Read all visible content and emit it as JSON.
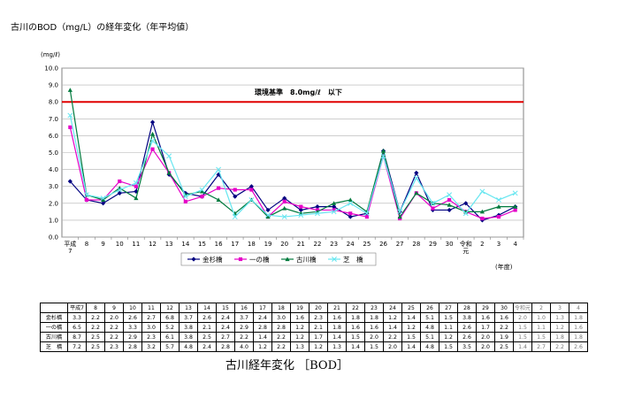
{
  "page": {
    "title": "古川のBOD（mg/L）の経年変化（年平均値）",
    "caption": "古川経年変化 ［BOD］"
  },
  "chart_data": {
    "type": "line",
    "ylabel": "(mg/ℓ)",
    "xlabel": "(年度)",
    "ylim": [
      0,
      10
    ],
    "yticks": [
      "0.0",
      "1.0",
      "2.0",
      "3.0",
      "4.0",
      "5.0",
      "6.0",
      "7.0",
      "8.0",
      "9.0",
      "10.0"
    ],
    "categories": [
      "平成7",
      "8",
      "9",
      "10",
      "11",
      "12",
      "13",
      "14",
      "15",
      "16",
      "17",
      "18",
      "19",
      "20",
      "21",
      "22",
      "23",
      "24",
      "25",
      "26",
      "27",
      "28",
      "29",
      "30",
      "令和元",
      "2",
      "3",
      "4"
    ],
    "x_tick_labels": [
      "平成\n7",
      "8",
      "9",
      "10",
      "11",
      "12",
      "13",
      "14",
      "15",
      "16",
      "17",
      "18",
      "19",
      "20",
      "21",
      "22",
      "23",
      "24",
      "25",
      "26",
      "27",
      "28",
      "29",
      "30",
      "令和\n元",
      "2",
      "3",
      "4"
    ],
    "reference_line": {
      "value": 8.0,
      "label": "環境基準　8.0mg/ℓ　以下",
      "color": "#e00000"
    },
    "legend_position": "bottom",
    "grid": "horizontal",
    "series": [
      {
        "name": "金杉橋",
        "color": "#000080",
        "marker": "diamond",
        "values": [
          3.3,
          2.2,
          2.0,
          2.6,
          2.7,
          6.8,
          3.7,
          2.6,
          2.4,
          3.7,
          2.4,
          3.0,
          1.6,
          2.3,
          1.6,
          1.8,
          1.8,
          1.2,
          1.4,
          5.1,
          1.5,
          3.8,
          1.6,
          1.6,
          2.0,
          1.0,
          1.3,
          1.8
        ]
      },
      {
        "name": "一の橋",
        "color": "#e600c8",
        "marker": "square",
        "values": [
          6.5,
          2.2,
          2.2,
          3.3,
          3.0,
          5.2,
          3.8,
          2.1,
          2.4,
          2.9,
          2.8,
          2.8,
          1.2,
          2.1,
          1.8,
          1.6,
          1.6,
          1.4,
          1.2,
          4.8,
          1.1,
          2.6,
          1.7,
          2.2,
          1.5,
          1.1,
          1.2,
          1.6
        ]
      },
      {
        "name": "古川橋",
        "color": "#007a3d",
        "marker": "triangle",
        "values": [
          8.7,
          2.5,
          2.2,
          2.9,
          2.3,
          6.1,
          3.8,
          2.5,
          2.7,
          2.2,
          1.4,
          2.2,
          1.2,
          1.7,
          1.4,
          1.5,
          2.0,
          2.2,
          1.5,
          5.1,
          1.2,
          2.6,
          2.0,
          1.9,
          1.5,
          1.5,
          1.8,
          1.8
        ]
      },
      {
        "name": "芝　橋",
        "color": "#66e6f0",
        "marker": "x",
        "values": [
          7.2,
          2.5,
          2.3,
          2.8,
          3.2,
          5.7,
          4.8,
          2.4,
          2.8,
          4.0,
          1.2,
          2.2,
          1.3,
          1.2,
          1.3,
          1.4,
          1.5,
          2.0,
          1.4,
          4.8,
          1.5,
          3.5,
          2.0,
          2.5,
          1.4,
          2.7,
          2.2,
          2.6
        ]
      }
    ]
  },
  "table": {
    "col_headers": [
      "平成7",
      "8",
      "9",
      "10",
      "11",
      "12",
      "13",
      "14",
      "15",
      "16",
      "17",
      "18",
      "19",
      "20",
      "21",
      "22",
      "23",
      "24",
      "25",
      "26",
      "27",
      "28",
      "29",
      "30",
      "令和元",
      "2",
      "3",
      "4"
    ],
    "rows": [
      {
        "label": "金杉橋",
        "values": [
          "3.3",
          "2.2",
          "2.0",
          "2.6",
          "2.7",
          "6.8",
          "3.7",
          "2.6",
          "2.4",
          "3.7",
          "2.4",
          "3.0",
          "1.6",
          "2.3",
          "1.6",
          "1.8",
          "1.8",
          "1.2",
          "1.4",
          "5.1",
          "1.5",
          "3.8",
          "1.6",
          "1.6",
          "2.0",
          "1.0",
          "1.3",
          "1.8"
        ]
      },
      {
        "label": "一の橋",
        "values": [
          "6.5",
          "2.2",
          "2.2",
          "3.3",
          "3.0",
          "5.2",
          "3.8",
          "2.1",
          "2.4",
          "2.9",
          "2.8",
          "2.8",
          "1.2",
          "2.1",
          "1.8",
          "1.6",
          "1.6",
          "1.4",
          "1.2",
          "4.8",
          "1.1",
          "2.6",
          "1.7",
          "2.2",
          "1.5",
          "1.1",
          "1.2",
          "1.6"
        ]
      },
      {
        "label": "古川橋",
        "values": [
          "8.7",
          "2.5",
          "2.2",
          "2.9",
          "2.3",
          "6.1",
          "3.8",
          "2.5",
          "2.7",
          "2.2",
          "1.4",
          "2.2",
          "1.2",
          "1.7",
          "1.4",
          "1.5",
          "2.0",
          "2.2",
          "1.5",
          "5.1",
          "1.2",
          "2.6",
          "2.0",
          "1.9",
          "1.5",
          "1.5",
          "1.8",
          "1.8"
        ]
      },
      {
        "label": "芝　橋",
        "values": [
          "7.2",
          "2.5",
          "2.3",
          "2.8",
          "3.2",
          "5.7",
          "4.8",
          "2.4",
          "2.8",
          "4.0",
          "1.2",
          "2.2",
          "1.3",
          "1.2",
          "1.3",
          "1.4",
          "1.5",
          "2.0",
          "1.4",
          "4.8",
          "1.5",
          "3.5",
          "2.0",
          "2.5",
          "1.4",
          "2.7",
          "2.2",
          "2.6"
        ]
      }
    ]
  }
}
